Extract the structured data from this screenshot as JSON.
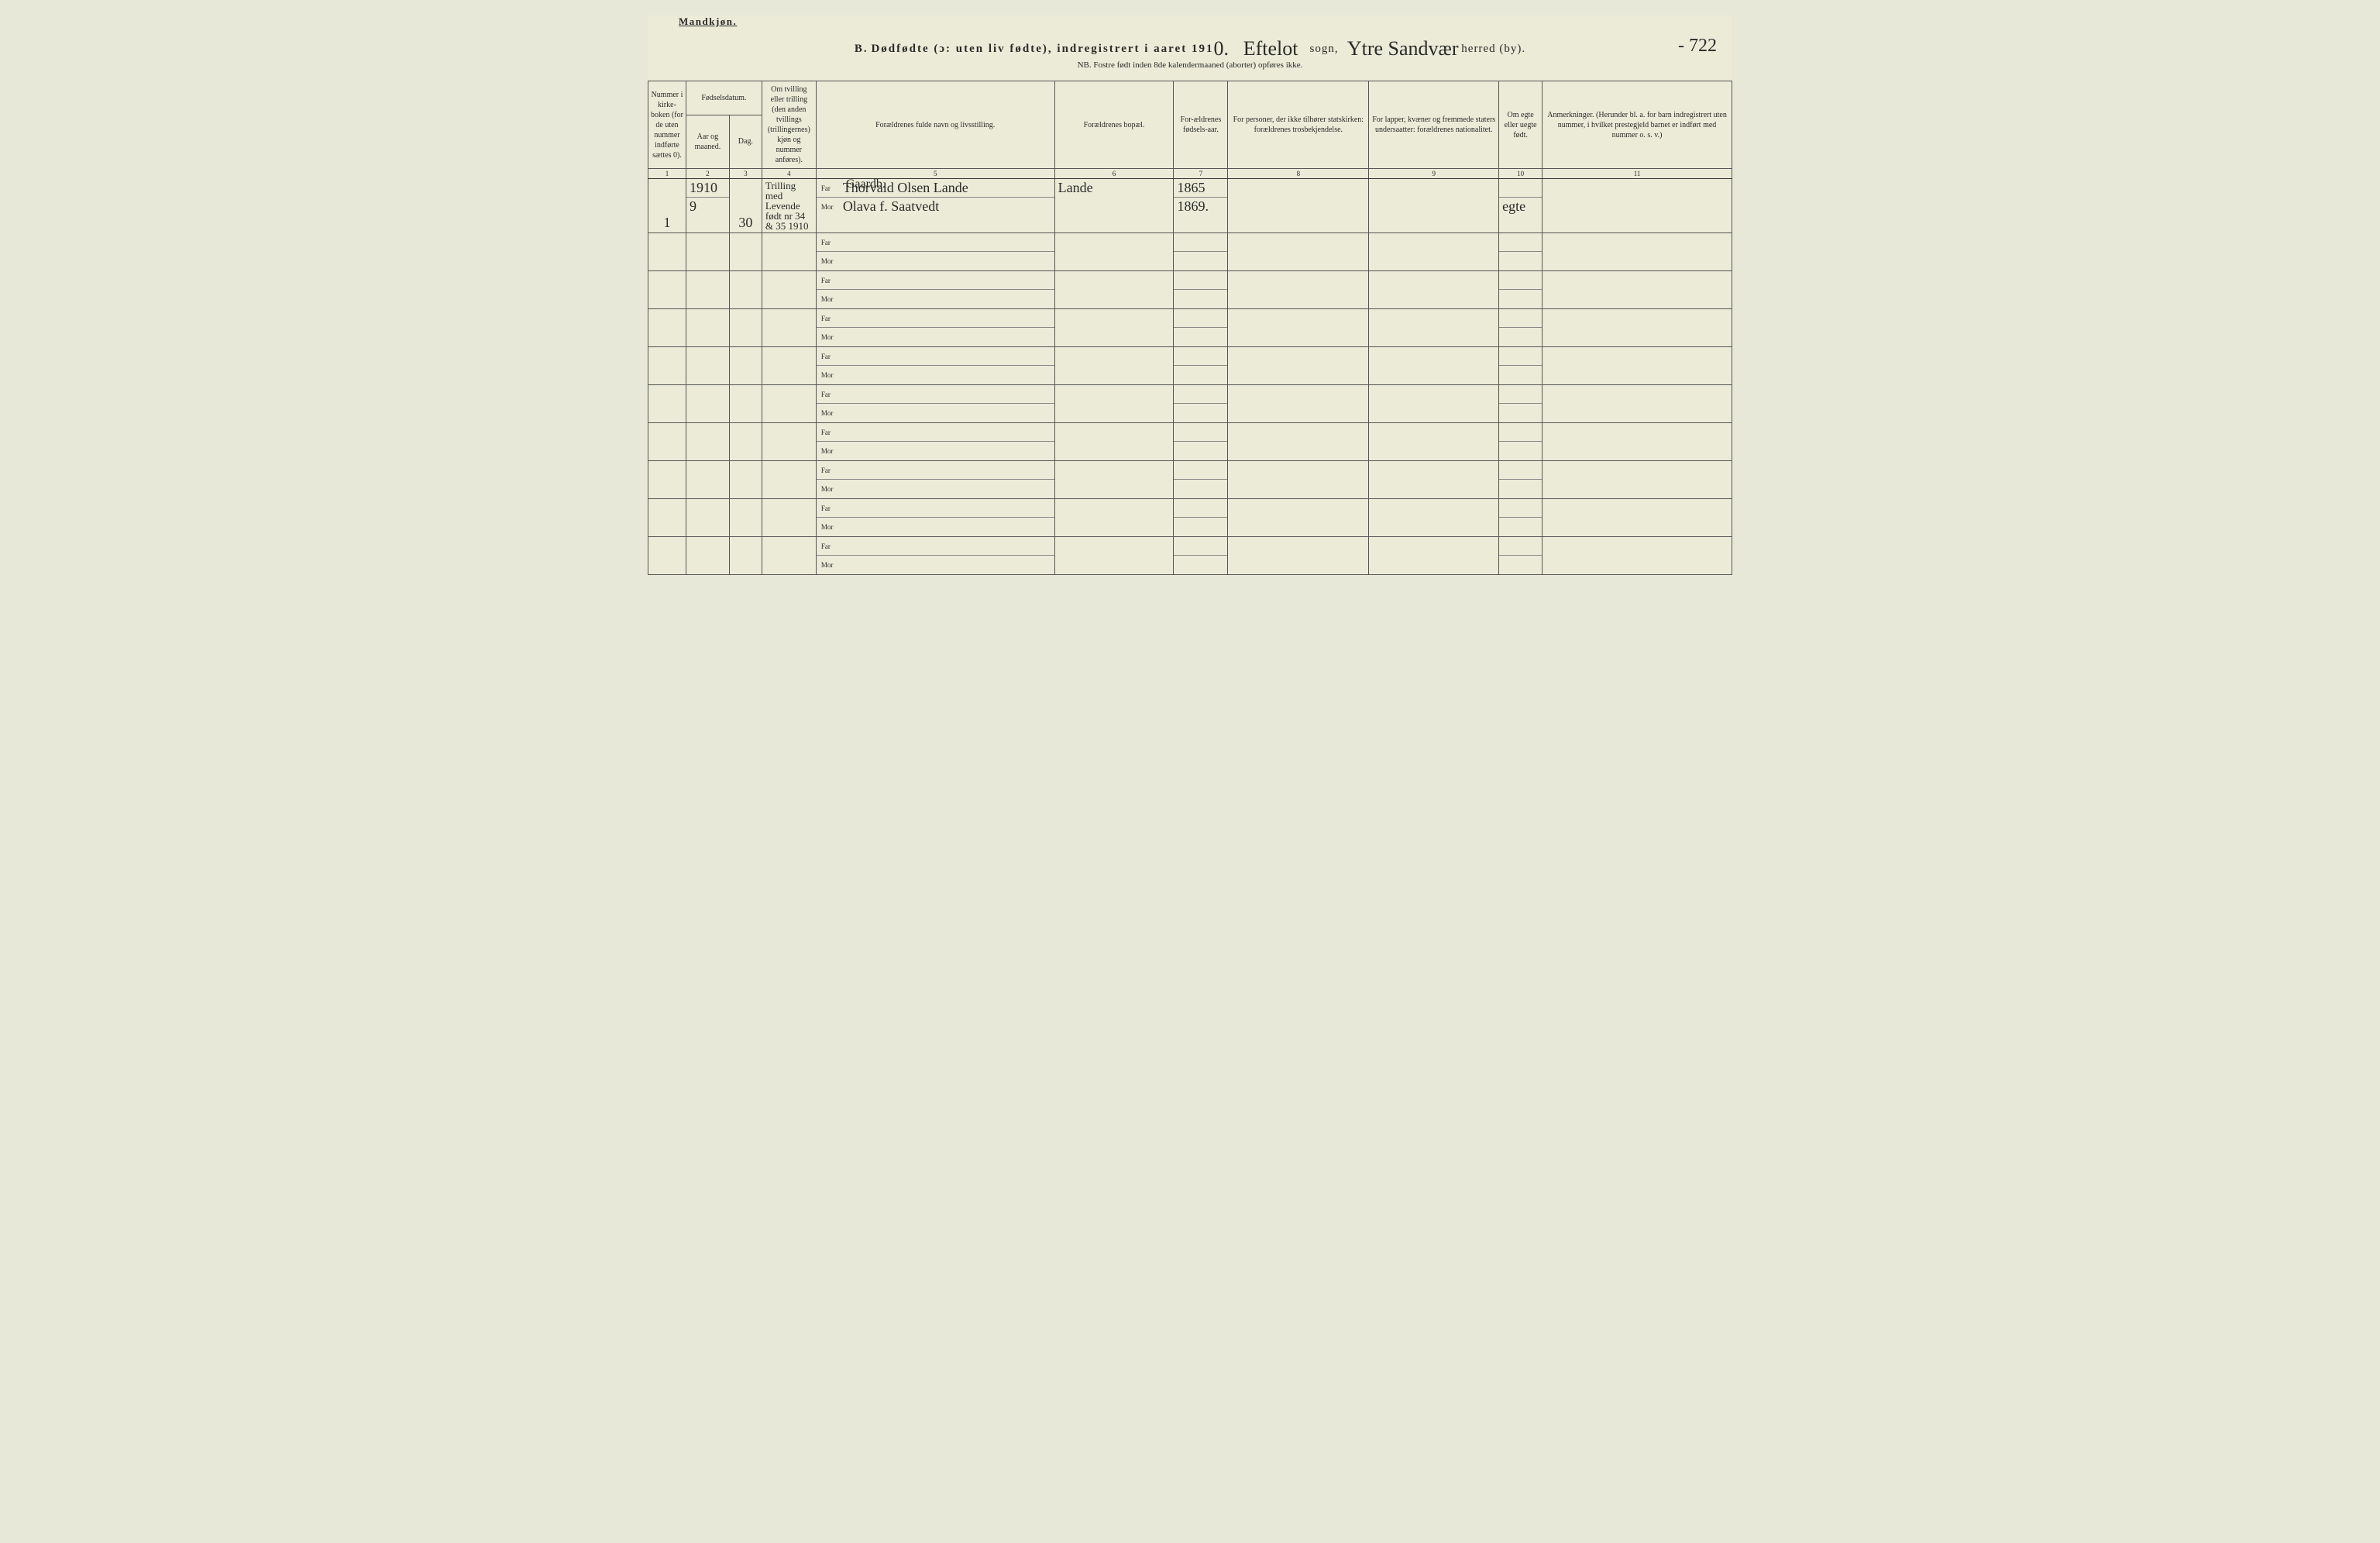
{
  "header": {
    "gender_label": "Mandkjøn.",
    "title_prefix": "B.",
    "title_main": "Dødfødte (ɔ: uten liv fødte), indregistrert i aaret 191",
    "year_digit": "0.",
    "sogn_handwritten": "Eftelot",
    "sogn_label": "sogn,",
    "herred_handwritten": "Ytre Sandvær",
    "herred_label": "herred (by).",
    "page_number": "- 722",
    "subtitle": "NB. Fostre født inden 8de kalendermaaned (aborter) opføres ikke."
  },
  "columns": {
    "c1": "Nummer i kirke-boken (for de uten nummer indførte sættes 0).",
    "c2a": "Fødselsdatum.",
    "c2": "Aar og maaned.",
    "c3": "Dag.",
    "c4": "Om tvilling eller trilling (den anden tvillings (trillingernes) kjøn og nummer anføres).",
    "c5": "Forældrenes fulde navn og livsstilling.",
    "c6": "Forældrenes bopæl.",
    "c7": "For-ældrenes fødsels-aar.",
    "c8": "For personer, der ikke tilhører statskirken: forældrenes trosbekjendelse.",
    "c9": "For lapper, kvæner og fremmede staters undersaatter: forældrenes nationalitet.",
    "c10": "Om egte eller uegte født.",
    "c11": "Anmerkninger. (Herunder bl. a. for barn indregistrert uten nummer, i hvilket prestegjeld barnet er indført med nummer o. s. v.)"
  },
  "colnums": [
    "1",
    "2",
    "3",
    "4",
    "5",
    "6",
    "7",
    "8",
    "9",
    "10",
    "11"
  ],
  "parent_labels": {
    "far": "Far",
    "mor": "Mor"
  },
  "entry": {
    "num": "1",
    "year_month_top": "1910",
    "year_month_bot": "9",
    "day": "30",
    "twin_note": "Trilling med Levende født nr 34 & 35 1910",
    "occupation": "Gaardb.",
    "father": "Thorvald Olsen Lande",
    "mother": "Olava f. Saatvedt",
    "residence": "Lande",
    "father_birth": "1865",
    "mother_birth": "1869.",
    "legit": "egte"
  },
  "styling": {
    "paper_bg": "#ebebd8",
    "border_color": "#555555",
    "text_color": "#2a2a2a",
    "handwriting_font": "Brush Script MT"
  }
}
